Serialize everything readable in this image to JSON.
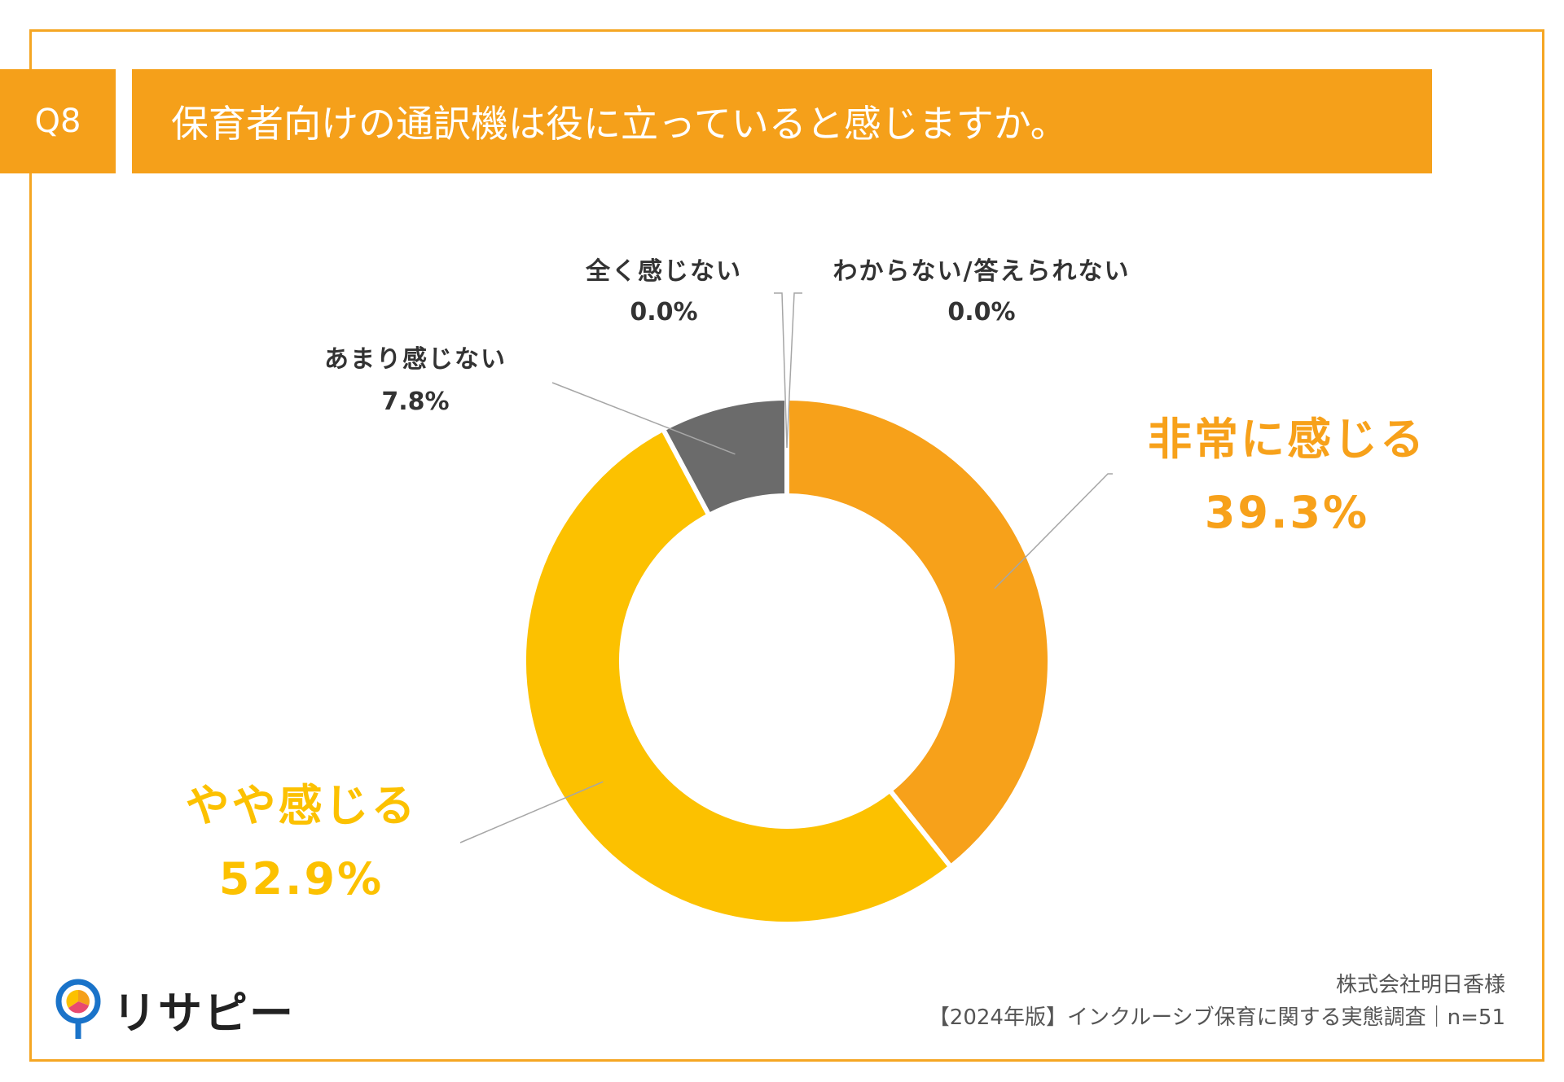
{
  "header": {
    "q_number": "Q8",
    "question": "保育者向けの通訳機は役に立っていると感じますか。"
  },
  "chart_data": {
    "type": "pie",
    "variant": "donut",
    "categories": [
      "非常に感じる",
      "やや感じる",
      "あまり感じない",
      "全く感じない",
      "わからない/答えられない"
    ],
    "values": [
      39.3,
      52.9,
      7.8,
      0.0,
      0.0
    ],
    "value_labels": [
      "39.3%",
      "52.9%",
      "7.8%",
      "0.0%",
      "0.0%"
    ],
    "colors": [
      "#F7A11A",
      "#FCC100",
      "#6B6B6B",
      "#6B6B6B",
      "#6B6B6B"
    ],
    "title": "保育者向けの通訳機は役に立っていると感じますか。"
  },
  "footer": {
    "client": "株式会社明日香様",
    "survey": "【2024年版】インクルーシブ保育に関する実態調査｜n=51"
  },
  "brand": {
    "name": "リサピー",
    "accent": "#F5A01A"
  }
}
